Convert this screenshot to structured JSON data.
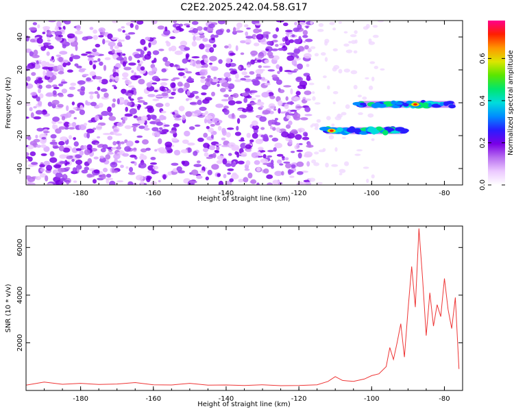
{
  "figure": {
    "title": "C2E2.2025.242.04.58.G17"
  },
  "chart_data": [
    {
      "type": "heatmap",
      "xlabel": "Height of straight line (km)",
      "ylabel": "Frequency (Hz)",
      "xlim": [
        -195,
        -75
      ],
      "ylim": [
        -50,
        50
      ],
      "x_ticks": [
        -180,
        -160,
        -140,
        -120,
        -100,
        -80
      ],
      "y_ticks": [
        -40,
        -20,
        0,
        20,
        40
      ],
      "colorbar": {
        "label": "Normalized spectral amplitude",
        "range": [
          0,
          0.78
        ],
        "ticks": [
          0.0,
          0.2,
          0.4,
          0.6
        ],
        "colors": [
          "#ffffff",
          "#ecc9ff",
          "#b86ef0",
          "#7a00e6",
          "#2a1cff",
          "#008cff",
          "#00dcdc",
          "#00e66e",
          "#5ae600",
          "#dce600",
          "#ff9600",
          "#ff1e00",
          "#ff008c"
        ]
      },
      "features": [
        {
          "name": "band-near-0Hz",
          "x_range": [
            -104,
            -77
          ],
          "y_center": -1,
          "peak_x": -88,
          "peak_value": 0.72
        },
        {
          "name": "band-near-minus17Hz",
          "x_range": [
            -113,
            -91
          ],
          "y_center": -17,
          "peak_x": -111,
          "peak_value": 0.65
        }
      ]
    },
    {
      "type": "line",
      "xlabel": "Height of straight line (km)",
      "ylabel": "SNR (10 * v/v)",
      "xlim": [
        -195,
        -75
      ],
      "ylim": [
        0,
        6900
      ],
      "x_ticks": [
        -180,
        -160,
        -140,
        -120,
        -100,
        -80
      ],
      "y_ticks": [
        2000,
        4000,
        6000
      ],
      "series_color": "#ee3333",
      "x": [
        -195,
        -190,
        -185,
        -180,
        -175,
        -170,
        -165,
        -160,
        -155,
        -150,
        -145,
        -140,
        -135,
        -130,
        -125,
        -120,
        -115,
        -112,
        -110,
        -108,
        -105,
        -102,
        -100,
        -98,
        -96,
        -95,
        -94,
        -93,
        -92,
        -91,
        -90,
        -89,
        -88,
        -87,
        -86,
        -85,
        -84,
        -83,
        -82,
        -81,
        -80,
        -79,
        -78,
        -77,
        -76
      ],
      "y": [
        220,
        350,
        260,
        300,
        250,
        270,
        330,
        240,
        230,
        300,
        220,
        230,
        210,
        240,
        200,
        210,
        240,
        380,
        580,
        420,
        380,
        480,
        620,
        700,
        1000,
        1800,
        1300,
        2000,
        2800,
        1400,
        3400,
        5200,
        3500,
        6800,
        4700,
        2300,
        4100,
        2700,
        3600,
        3100,
        4700,
        3400,
        2600,
        3900,
        900
      ]
    }
  ]
}
